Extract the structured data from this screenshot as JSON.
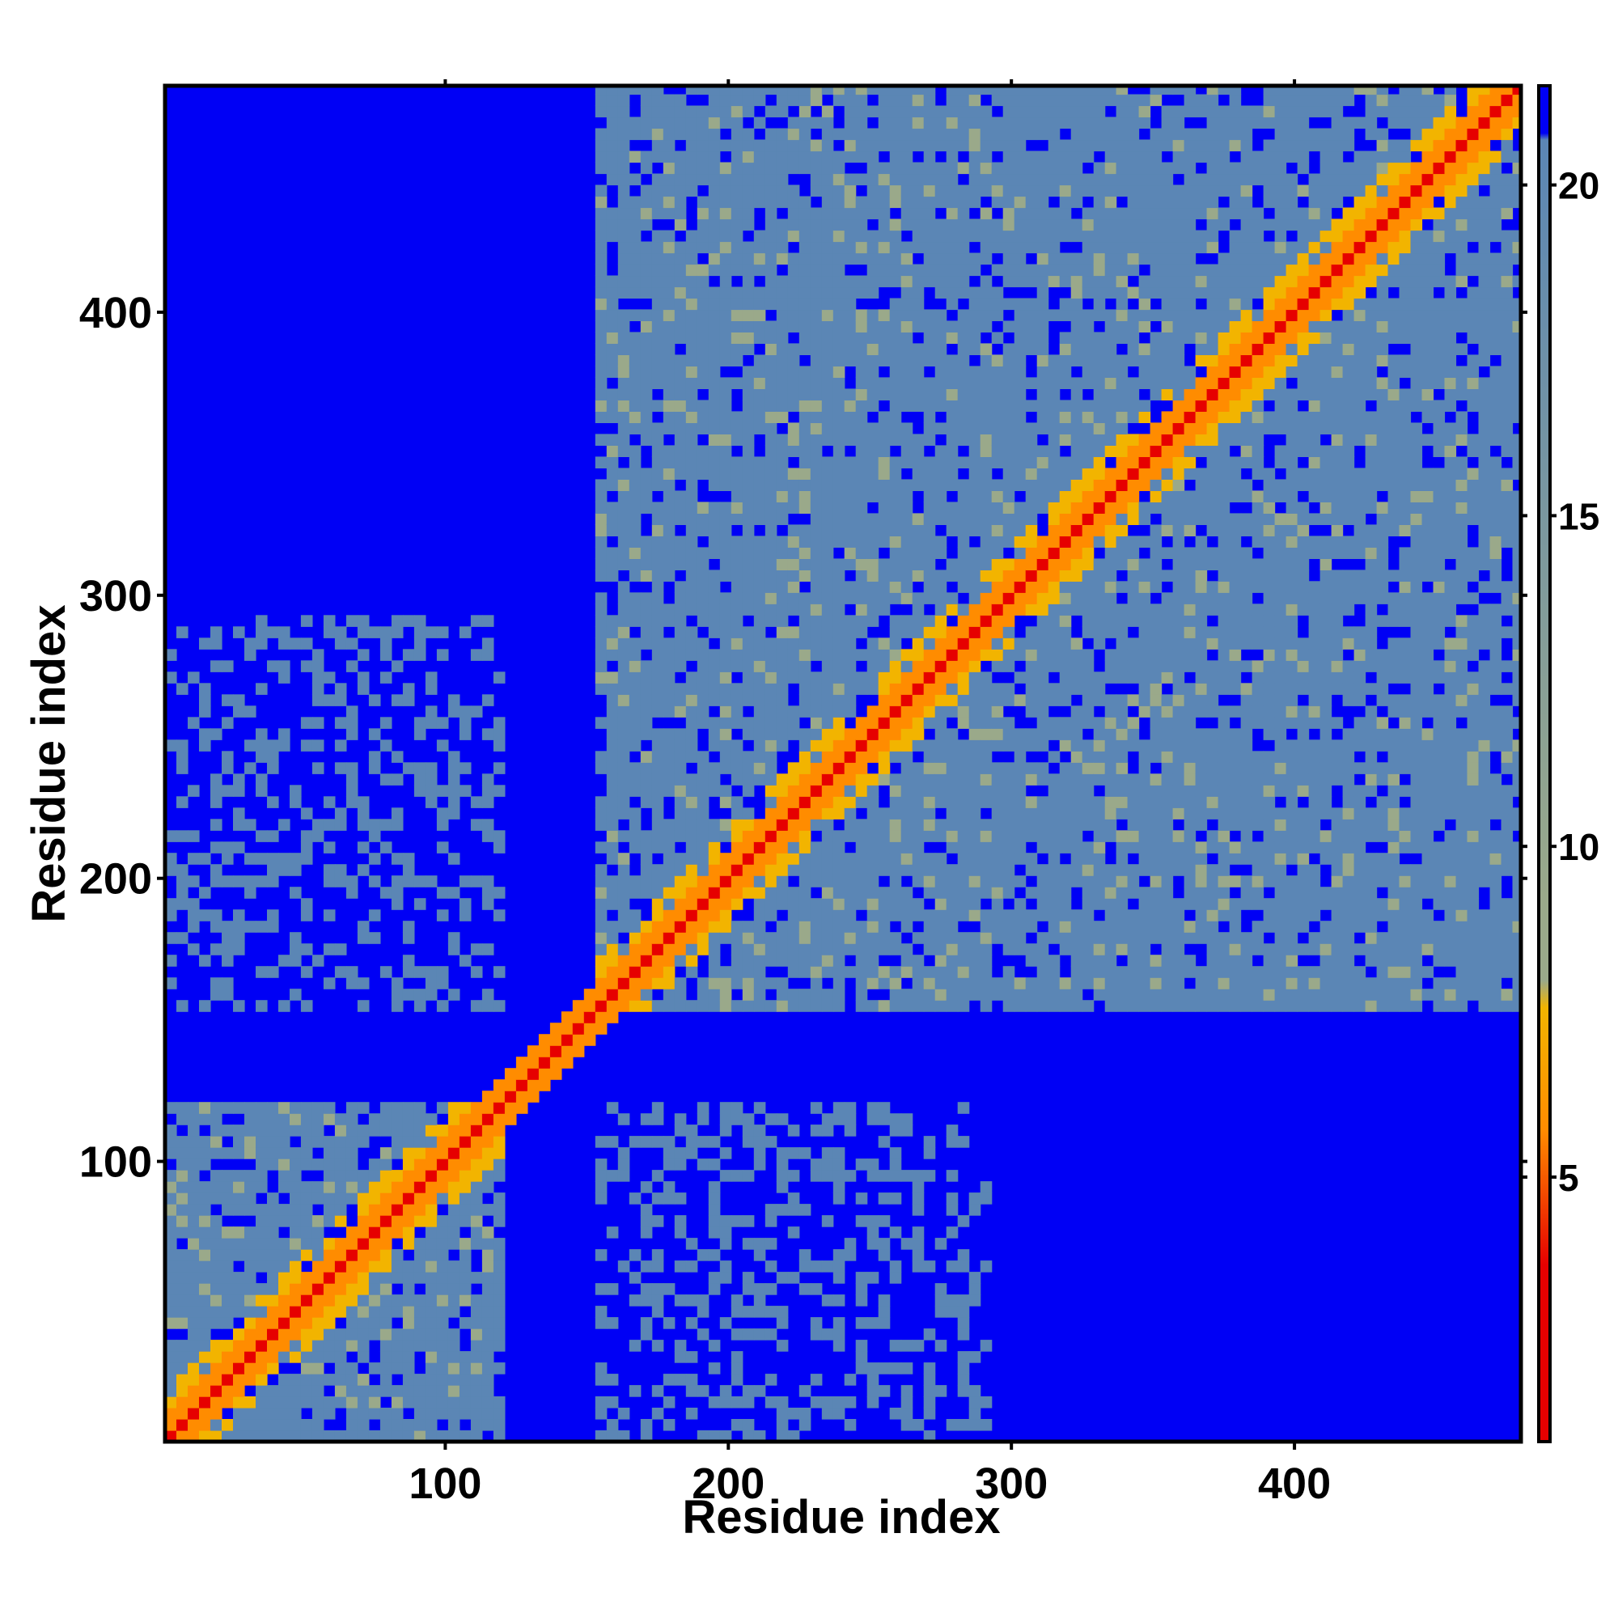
{
  "chart_data": {
    "type": "heatmap",
    "title": "",
    "xlabel": "Residue index",
    "ylabel": "Residue index",
    "xlim": [
      1,
      480
    ],
    "ylim": [
      1,
      480
    ],
    "x_ticks": [
      {
        "value": 100,
        "label": "100"
      },
      {
        "value": 200,
        "label": "200"
      },
      {
        "value": 300,
        "label": "300"
      },
      {
        "value": 400,
        "label": "400"
      }
    ],
    "y_ticks": [
      {
        "value": 100,
        "label": "100"
      },
      {
        "value": 200,
        "label": "200"
      },
      {
        "value": 300,
        "label": "300"
      },
      {
        "value": 400,
        "label": "400"
      }
    ],
    "colorbar": {
      "range": [
        1,
        21.5
      ],
      "ticks": [
        {
          "value": 5,
          "label": "5"
        },
        {
          "value": 10,
          "label": "10"
        },
        {
          "value": 15,
          "label": "15"
        },
        {
          "value": 20,
          "label": "20"
        }
      ],
      "colors": {
        "min": "#e60000",
        "mid_low": "#ff8c00",
        "mid": "#f2b400",
        "mid_high": "#9aa98a",
        "high": "#5b86b5",
        "max": "#0000f5"
      }
    },
    "domains": [
      {
        "start": 1,
        "end": 120
      },
      {
        "start": 150,
        "end": 480
      }
    ],
    "background_color": "#0000f5",
    "grid": false
  }
}
